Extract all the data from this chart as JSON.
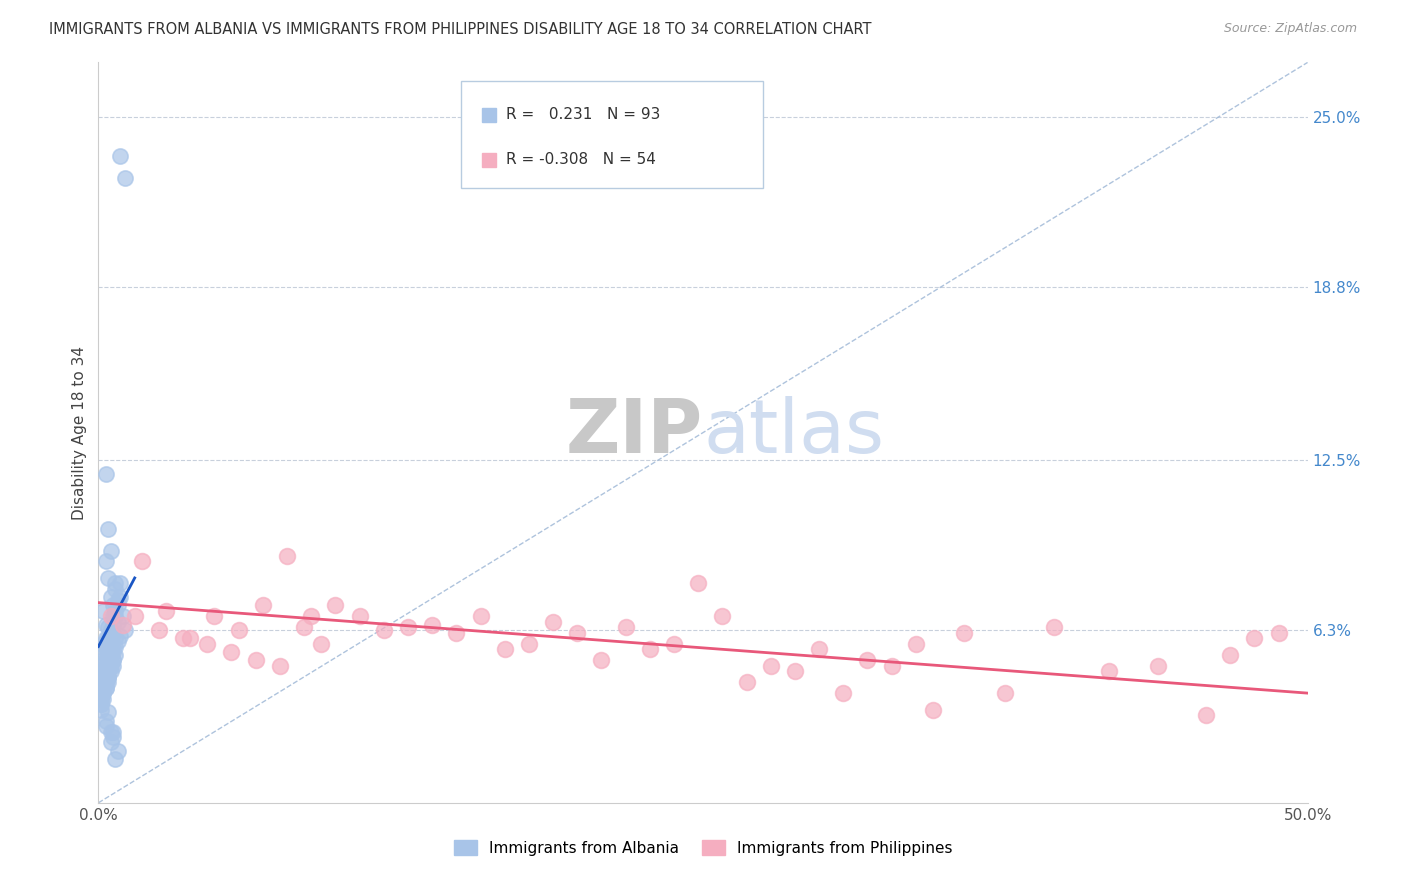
{
  "title": "IMMIGRANTS FROM ALBANIA VS IMMIGRANTS FROM PHILIPPINES DISABILITY AGE 18 TO 34 CORRELATION CHART",
  "source": "Source: ZipAtlas.com",
  "ylabel": "Disability Age 18 to 34",
  "xlim": [
    0.0,
    0.5
  ],
  "ylim": [
    0.0,
    0.27
  ],
  "xtick_vals": [
    0.0,
    0.1,
    0.2,
    0.3,
    0.4,
    0.5
  ],
  "xticklabels": [
    "0.0%",
    "",
    "",
    "",
    "",
    "50.0%"
  ],
  "ytick_labels_right": [
    "25.0%",
    "18.8%",
    "12.5%",
    "6.3%"
  ],
  "ytick_vals_right": [
    0.25,
    0.188,
    0.125,
    0.063
  ],
  "albania_R": 0.231,
  "albania_N": 93,
  "philippines_R": -0.308,
  "philippines_N": 54,
  "albania_color": "#a8c4e8",
  "philippines_color": "#f5aec0",
  "albania_line_color": "#1a56c4",
  "philippines_line_color": "#e8587a",
  "trendline_color": "#9ab4d4",
  "background_color": "#ffffff",
  "watermark_color": "#d0ddf0",
  "albania_scatter_x": [
    0.009,
    0.011,
    0.003,
    0.004,
    0.005,
    0.003,
    0.004,
    0.007,
    0.008,
    0.002,
    0.006,
    0.008,
    0.004,
    0.005,
    0.003,
    0.002,
    0.005,
    0.006,
    0.003,
    0.007,
    0.001,
    0.003,
    0.004,
    0.005,
    0.001,
    0.002,
    0.003,
    0.005,
    0.007,
    0.009,
    0.001,
    0.001,
    0.002,
    0.003,
    0.003,
    0.004,
    0.004,
    0.005,
    0.006,
    0.006,
    0.007,
    0.008,
    0.009,
    0.01,
    0.011,
    0.001,
    0.001,
    0.002,
    0.002,
    0.003,
    0.004,
    0.004,
    0.005,
    0.006,
    0.007,
    0.001,
    0.001,
    0.002,
    0.003,
    0.004,
    0.004,
    0.005,
    0.006,
    0.006,
    0.007,
    0.008,
    0.009,
    0.001,
    0.001,
    0.002,
    0.003,
    0.003,
    0.004,
    0.005,
    0.006,
    0.006,
    0.007,
    0.001,
    0.001,
    0.002,
    0.002,
    0.003,
    0.004,
    0.004,
    0.005,
    0.006,
    0.006,
    0.007,
    0.008,
    0.003,
    0.003,
    0.004,
    0.005
  ],
  "albania_scatter_y": [
    0.236,
    0.228,
    0.12,
    0.1,
    0.092,
    0.088,
    0.082,
    0.078,
    0.074,
    0.07,
    0.068,
    0.066,
    0.064,
    0.062,
    0.06,
    0.058,
    0.075,
    0.072,
    0.065,
    0.08,
    0.055,
    0.058,
    0.06,
    0.063,
    0.048,
    0.052,
    0.056,
    0.06,
    0.068,
    0.08,
    0.048,
    0.044,
    0.048,
    0.05,
    0.052,
    0.055,
    0.057,
    0.06,
    0.062,
    0.065,
    0.07,
    0.072,
    0.075,
    0.068,
    0.063,
    0.042,
    0.04,
    0.044,
    0.046,
    0.048,
    0.05,
    0.052,
    0.054,
    0.057,
    0.06,
    0.038,
    0.04,
    0.042,
    0.044,
    0.046,
    0.048,
    0.05,
    0.052,
    0.055,
    0.057,
    0.059,
    0.061,
    0.036,
    0.038,
    0.04,
    0.042,
    0.044,
    0.046,
    0.048,
    0.05,
    0.052,
    0.054,
    0.034,
    0.036,
    0.038,
    0.04,
    0.042,
    0.044,
    0.046,
    0.022,
    0.024,
    0.026,
    0.016,
    0.019,
    0.028,
    0.03,
    0.033,
    0.026
  ],
  "philippines_scatter_x": [
    0.005,
    0.01,
    0.018,
    0.028,
    0.038,
    0.048,
    0.058,
    0.068,
    0.078,
    0.088,
    0.098,
    0.118,
    0.138,
    0.158,
    0.178,
    0.198,
    0.218,
    0.238,
    0.258,
    0.278,
    0.298,
    0.318,
    0.338,
    0.358,
    0.375,
    0.395,
    0.418,
    0.438,
    0.458,
    0.478,
    0.015,
    0.025,
    0.035,
    0.045,
    0.055,
    0.065,
    0.075,
    0.085,
    0.092,
    0.108,
    0.128,
    0.148,
    0.168,
    0.188,
    0.208,
    0.228,
    0.248,
    0.268,
    0.288,
    0.308,
    0.328,
    0.345,
    0.488,
    0.468
  ],
  "philippines_scatter_y": [
    0.068,
    0.065,
    0.088,
    0.07,
    0.06,
    0.068,
    0.063,
    0.072,
    0.09,
    0.068,
    0.072,
    0.063,
    0.065,
    0.068,
    0.058,
    0.062,
    0.064,
    0.058,
    0.068,
    0.05,
    0.056,
    0.052,
    0.058,
    0.062,
    0.04,
    0.064,
    0.048,
    0.05,
    0.032,
    0.06,
    0.068,
    0.063,
    0.06,
    0.058,
    0.055,
    0.052,
    0.05,
    0.064,
    0.058,
    0.068,
    0.064,
    0.062,
    0.056,
    0.066,
    0.052,
    0.056,
    0.08,
    0.044,
    0.048,
    0.04,
    0.05,
    0.034,
    0.062,
    0.054
  ],
  "albania_line_x": [
    0.0,
    0.015
  ],
  "albania_line_y": [
    0.057,
    0.082
  ],
  "philippines_line_x": [
    0.0,
    0.5
  ],
  "philippines_line_y_start": 0.073,
  "philippines_line_y_end": 0.04,
  "trendline_x": [
    0.0,
    0.5
  ],
  "trendline_y": [
    0.0,
    0.27
  ]
}
